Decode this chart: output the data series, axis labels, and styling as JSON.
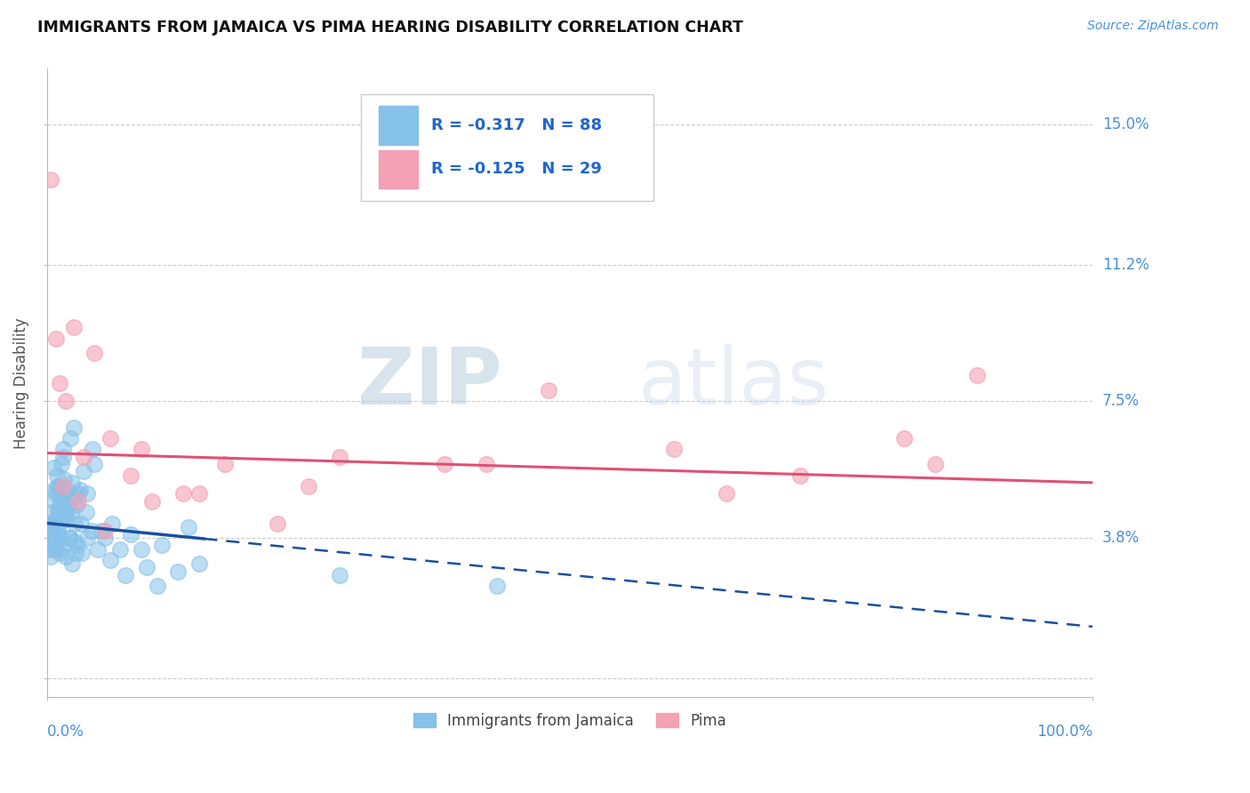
{
  "title": "IMMIGRANTS FROM JAMAICA VS PIMA HEARING DISABILITY CORRELATION CHART",
  "source_text": "Source: ZipAtlas.com",
  "ylabel": "Hearing Disability",
  "legend_r_blue": "R = -0.317",
  "legend_n_blue": "N = 88",
  "legend_r_pink": "R = -0.125",
  "legend_n_pink": "N = 29",
  "xlim": [
    0.0,
    100.0
  ],
  "ylim": [
    -0.5,
    16.5
  ],
  "yticks": [
    0.0,
    3.8,
    7.5,
    11.2,
    15.0
  ],
  "ytick_labels": [
    "",
    "3.8%",
    "7.5%",
    "11.2%",
    "15.0%"
  ],
  "blue_color": "#85C1E8",
  "pink_color": "#F4A0B5",
  "blue_line_color": "#1A4FA0",
  "pink_line_color": "#E05075",
  "watermark_zip": "ZIP",
  "watermark_atlas": "atlas",
  "blue_scatter_x": [
    0.1,
    0.15,
    0.2,
    0.25,
    0.3,
    0.35,
    0.4,
    0.45,
    0.5,
    0.55,
    0.6,
    0.65,
    0.7,
    0.75,
    0.8,
    0.85,
    0.9,
    0.95,
    1.0,
    1.05,
    1.1,
    1.15,
    1.2,
    1.25,
    1.3,
    1.35,
    1.4,
    1.5,
    1.6,
    1.7,
    1.8,
    1.9,
    2.0,
    2.1,
    2.2,
    2.3,
    2.4,
    2.5,
    2.6,
    2.7,
    2.8,
    2.9,
    3.0,
    3.2,
    3.5,
    3.8,
    4.2,
    4.8,
    5.5,
    6.2,
    7.0,
    8.0,
    9.5,
    11.0,
    13.5,
    0.2,
    0.3,
    0.5,
    0.7,
    1.0,
    1.3,
    1.6,
    2.0,
    2.4,
    2.8,
    3.3,
    3.8,
    4.5,
    5.2,
    6.0,
    7.5,
    9.0,
    10.5,
    12.5,
    14.5,
    0.4,
    0.6,
    0.9,
    1.2,
    1.5,
    1.8,
    2.2,
    2.6,
    3.1,
    3.7,
    4.3,
    28.0,
    43.0
  ],
  "blue_scatter_y": [
    3.8,
    3.5,
    4.0,
    3.6,
    3.7,
    4.2,
    3.9,
    4.5,
    3.8,
    4.1,
    3.5,
    4.8,
    4.2,
    3.6,
    5.0,
    4.3,
    3.9,
    5.5,
    4.0,
    3.7,
    4.6,
    4.2,
    5.2,
    4.8,
    3.5,
    5.8,
    4.9,
    6.2,
    5.0,
    4.4,
    3.3,
    5.1,
    4.7,
    3.8,
    6.5,
    4.5,
    5.3,
    6.8,
    4.2,
    3.4,
    4.9,
    3.6,
    5.0,
    4.2,
    5.6,
    3.8,
    4.0,
    3.5,
    3.8,
    4.2,
    3.5,
    3.9,
    3.0,
    3.6,
    4.1,
    4.2,
    3.3,
    3.9,
    5.1,
    4.5,
    3.8,
    5.4,
    4.6,
    3.1,
    4.7,
    3.4,
    5.0,
    5.8,
    4.0,
    3.2,
    2.8,
    3.5,
    2.5,
    2.9,
    3.1,
    4.1,
    5.7,
    5.2,
    3.4,
    6.0,
    4.3,
    3.8,
    3.7,
    5.1,
    4.5,
    6.2,
    2.8,
    2.5
  ],
  "pink_scatter_x": [
    0.3,
    0.8,
    1.2,
    1.8,
    2.5,
    3.5,
    4.5,
    6.0,
    8.0,
    10.0,
    13.0,
    17.0,
    22.0,
    28.0,
    38.0,
    48.0,
    60.0,
    72.0,
    82.0,
    89.0,
    1.5,
    3.0,
    5.5,
    9.0,
    14.5,
    25.0,
    42.0,
    65.0,
    85.0
  ],
  "pink_scatter_y": [
    13.5,
    9.2,
    8.0,
    7.5,
    9.5,
    6.0,
    8.8,
    6.5,
    5.5,
    4.8,
    5.0,
    5.8,
    4.2,
    6.0,
    5.8,
    7.8,
    6.2,
    5.5,
    6.5,
    8.2,
    5.2,
    4.8,
    4.0,
    6.2,
    5.0,
    5.2,
    5.8,
    5.0,
    5.8
  ],
  "blue_line_x0": 0.0,
  "blue_line_x_solid_end": 15.0,
  "blue_line_x_dash_end": 100.0,
  "blue_line_y0": 4.2,
  "blue_line_slope": -0.028,
  "pink_line_y0": 6.1,
  "pink_line_slope": -0.008
}
